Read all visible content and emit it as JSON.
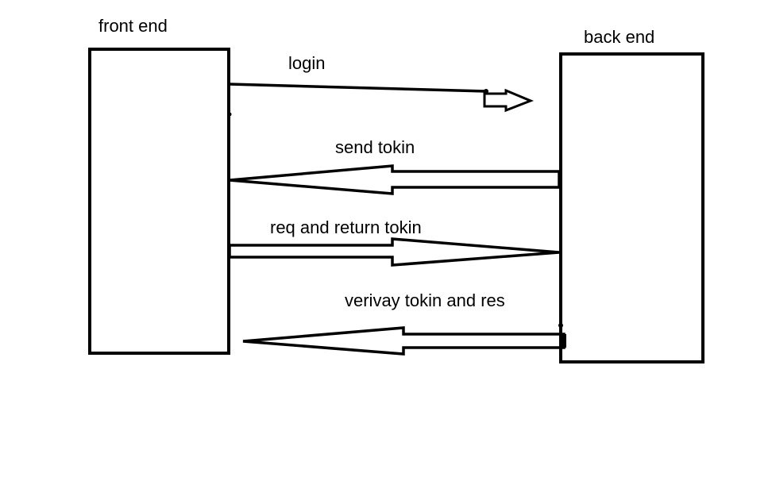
{
  "nodes": {
    "frontend": {
      "label": "front end"
    },
    "backend": {
      "label": "back end"
    }
  },
  "arrows": [
    {
      "label": "login",
      "from": "front end",
      "to": "back end"
    },
    {
      "label": "send tokin",
      "from": "back end",
      "to": "front end"
    },
    {
      "label": "req and return tokin",
      "from": "front end",
      "to": "back end"
    },
    {
      "label": "verivay tokin and res",
      "from": "back end",
      "to": "front end"
    }
  ],
  "colors": {
    "stroke": "#000000",
    "background": "#ffffff"
  }
}
